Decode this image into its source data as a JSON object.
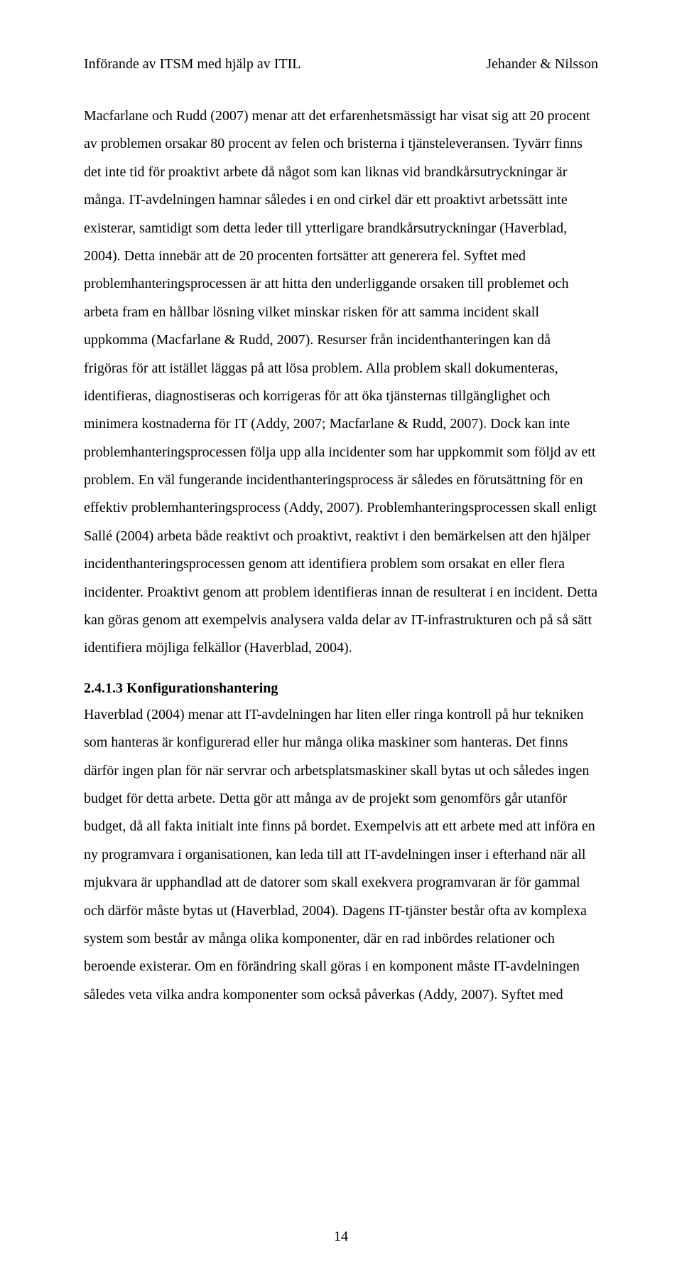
{
  "header": {
    "left": "Införande av ITSM med hjälp av ITIL",
    "right": "Jehander & Nilsson"
  },
  "paragraphs": {
    "p1": "Macfarlane och Rudd (2007) menar att det erfarenhetsmässigt har visat sig att 20 procent av problemen orsakar 80 procent av felen och bristerna i tjänsteleveransen. Tyvärr finns det inte tid för proaktivt arbete då något som kan liknas vid brandkårsutryckningar är många. IT-avdelningen hamnar således i en ond cirkel där ett proaktivt arbetssätt inte existerar, samtidigt som detta leder till ytterligare brandkårsutryckningar (Haverblad, 2004). Detta innebär att de 20 procenten fortsätter att generera fel. Syftet med problemhanteringsprocessen är att hitta den underliggande orsaken till problemet och arbeta fram en hållbar lösning vilket minskar risken för att samma incident skall uppkomma (Macfarlane & Rudd, 2007). Resurser från incidenthanteringen kan då frigöras för att istället läggas på att lösa problem. Alla problem skall dokumenteras, identifieras, diagnostiseras och korrigeras för att öka tjänsternas tillgänglighet och minimera kostnaderna för IT (Addy, 2007; Macfarlane & Rudd, 2007). Dock kan inte problemhanteringsprocessen följa upp alla incidenter som har uppkommit som följd av ett problem. En väl fungerande incidenthanteringsprocess är således en förutsättning för en effektiv problemhanteringsprocess (Addy, 2007). Problemhanteringsprocessen skall enligt Sallé (2004) arbeta både reaktivt och proaktivt, reaktivt i den bemärkelsen att den hjälper incidenthanteringsprocessen genom att identifiera problem som orsakat en eller flera incidenter. Proaktivt genom att problem identifieras innan de resulterat i en incident. Detta kan göras genom att exempelvis analysera valda delar av IT-infrastrukturen och på så sätt identifiera möjliga felkällor (Haverblad, 2004)."
  },
  "section": {
    "heading": "2.4.1.3 Konfigurationshantering",
    "body": "Haverblad (2004) menar att IT-avdelningen har liten eller ringa kontroll på hur tekniken som hanteras är konfigurerad eller hur många olika maskiner som hanteras. Det finns därför ingen plan för när servrar och arbetsplatsmaskiner skall bytas ut och således ingen budget för detta arbete. Detta gör att många av de projekt som genomförs går utanför budget, då all fakta initialt inte finns på bordet. Exempelvis att ett arbete med att införa en ny programvara i organisationen, kan leda till att IT-avdelningen inser i efterhand när all mjukvara är upphandlad att de datorer som skall exekvera programvaran är för gammal och därför måste bytas ut (Haverblad, 2004). Dagens IT-tjänster består ofta av komplexa system som består av många olika komponenter, där en rad inbördes relationer och beroende existerar. Om en förändring skall göras i en komponent måste IT-avdelningen således veta vilka andra komponenter som också påverkas (Addy, 2007). Syftet med"
  },
  "page_number": "14"
}
